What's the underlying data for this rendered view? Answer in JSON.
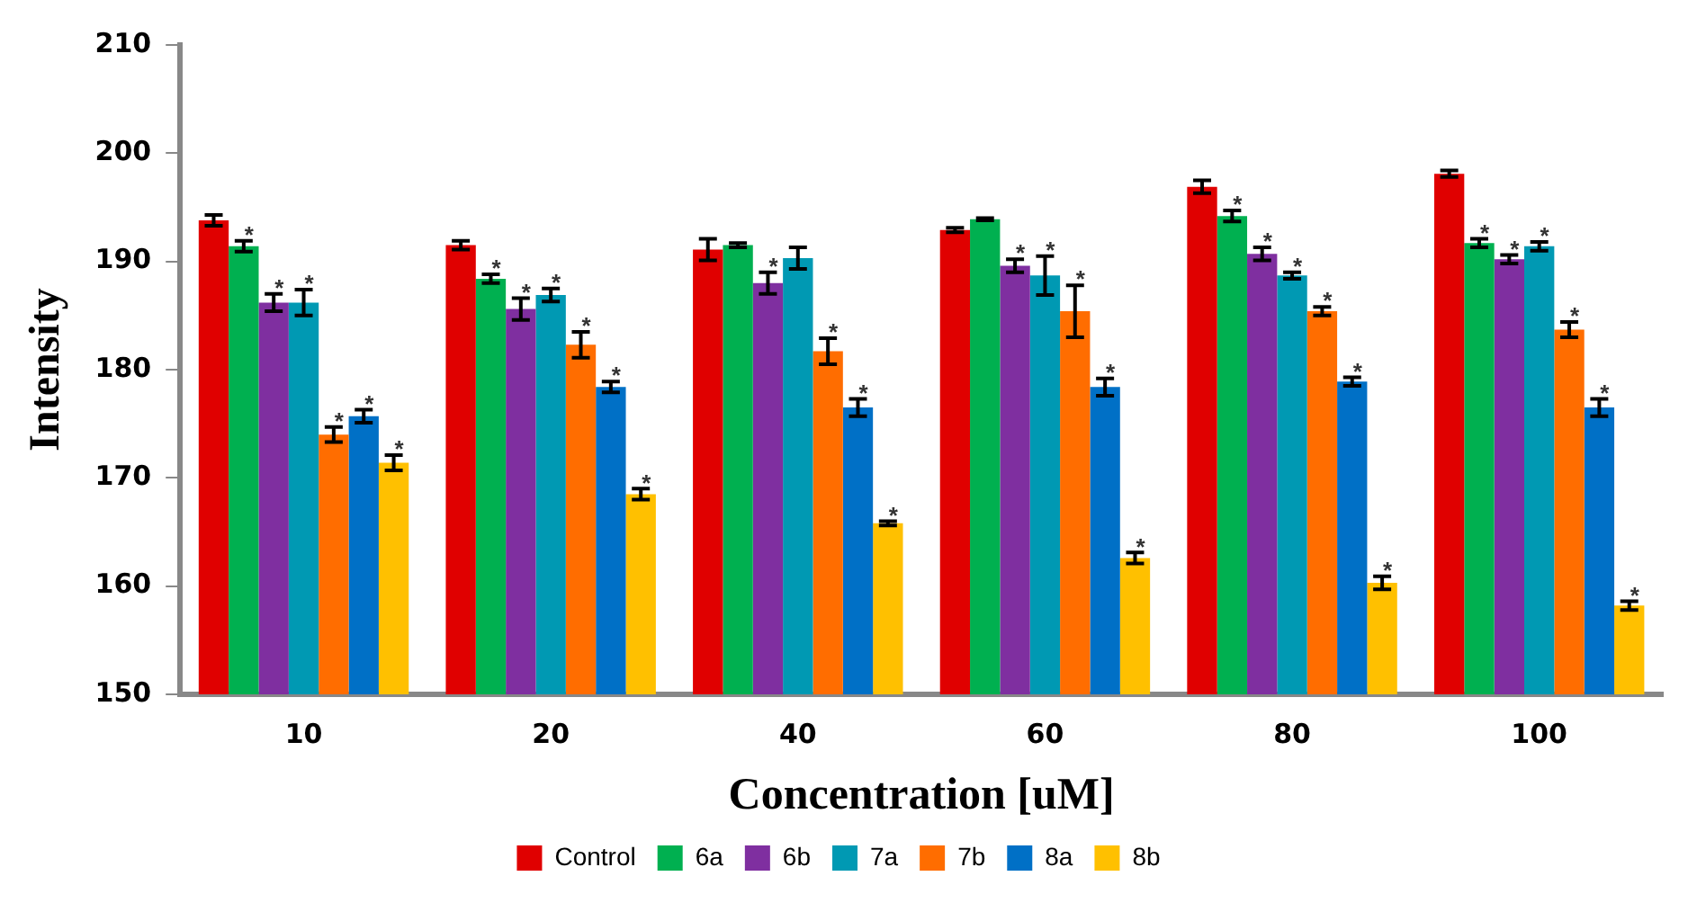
{
  "chart_data": {
    "type": "bar",
    "xlabel": "Concentration [uM]",
    "ylabel": "Intensity",
    "categories": [
      "10",
      "20",
      "40",
      "60",
      "80",
      "100"
    ],
    "series": [
      {
        "name": "Control",
        "color": "#e00000",
        "values": [
          193.8,
          191.5,
          191.1,
          192.9,
          196.9,
          198.1
        ],
        "errors": [
          0.5,
          0.4,
          1.0,
          0.2,
          0.6,
          0.3
        ]
      },
      {
        "name": "6a",
        "color": "#00b050",
        "values": [
          191.4,
          188.4,
          191.5,
          193.9,
          194.2,
          191.7
        ],
        "errors": [
          0.5,
          0.4,
          0.2,
          0.1,
          0.5,
          0.4
        ],
        "value_labels": [
          "*",
          "*",
          null,
          null,
          "*",
          "*"
        ]
      },
      {
        "name": "6b",
        "color": "#7f2fa0",
        "values": [
          186.2,
          185.6,
          188.0,
          189.6,
          190.7,
          190.2
        ],
        "errors": [
          0.8,
          1.0,
          1.0,
          0.6,
          0.6,
          0.4
        ],
        "value_labels": [
          "*",
          "*",
          "*",
          "*",
          "*",
          "*"
        ]
      },
      {
        "name": "7a",
        "color": "#0099b3",
        "values": [
          186.2,
          186.9,
          190.3,
          188.7,
          188.7,
          191.4
        ],
        "errors": [
          1.2,
          0.6,
          1.0,
          1.8,
          0.3,
          0.4
        ],
        "value_labels": [
          "*",
          "*",
          null,
          "*",
          "*",
          "*"
        ]
      },
      {
        "name": "7b",
        "color": "#ff6d00",
        "values": [
          174.0,
          182.3,
          181.7,
          185.4,
          185.4,
          183.7
        ],
        "errors": [
          0.7,
          1.2,
          1.2,
          2.4,
          0.4,
          0.7
        ],
        "value_labels": [
          "*",
          "*",
          "*",
          "*",
          "*",
          "*"
        ]
      },
      {
        "name": "8a",
        "color": "#0070c6",
        "values": [
          175.7,
          178.4,
          176.5,
          178.4,
          178.9,
          176.5
        ],
        "errors": [
          0.6,
          0.5,
          0.8,
          0.8,
          0.4,
          0.8
        ],
        "value_labels": [
          "*",
          "*",
          "*",
          "*",
          "*",
          "*"
        ]
      },
      {
        "name": "8b",
        "color": "#ffc000",
        "values": [
          171.4,
          168.5,
          165.8,
          162.6,
          160.3,
          158.2
        ],
        "errors": [
          0.7,
          0.5,
          0.2,
          0.5,
          0.6,
          0.4
        ],
        "value_labels": [
          "*",
          "*",
          "*",
          "*",
          "*",
          "*"
        ]
      }
    ],
    "ylim": [
      150,
      210
    ],
    "yticks": [
      150,
      160,
      170,
      180,
      190,
      200,
      210
    ],
    "grid": false,
    "legend": "bottom"
  }
}
